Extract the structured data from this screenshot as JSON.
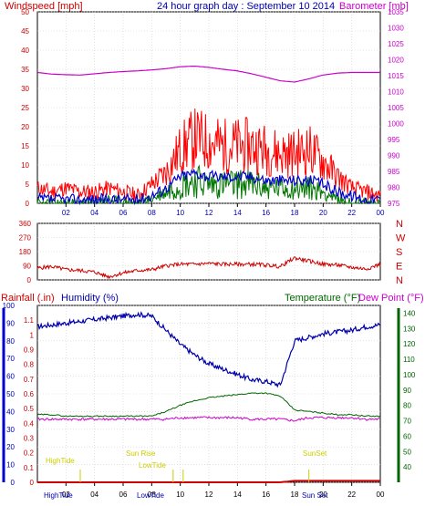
{
  "colors": {
    "wind": "#ff0000",
    "gust": "#0000cc",
    "wind_green": "#007700",
    "baro": "#cc00cc",
    "dir": "#cc0000",
    "rain": "#cc0000",
    "humidity": "#0000aa",
    "temperature": "#006600",
    "dewpoint": "#cc00cc",
    "annotation": "#cccc00"
  },
  "chart_data": [
    {
      "type": "line",
      "title": "24 hour graph day : September 10 2014",
      "left_label": "Windspeed [mph]",
      "right_label": "Barometer [mb]",
      "x_ticks": [
        "02",
        "04",
        "06",
        "08",
        "10",
        "12",
        "14",
        "16",
        "18",
        "20",
        "22",
        "00"
      ],
      "ylim_left": [
        0,
        50
      ],
      "yticks_left": [
        "0",
        "5",
        "10",
        "15",
        "20",
        "25",
        "30",
        "35",
        "40",
        "45",
        "50"
      ],
      "ylim_right": [
        975,
        1035
      ],
      "yticks_right": [
        "975",
        "980",
        "985",
        "990",
        "995",
        "1000",
        "1005",
        "1010",
        "1015",
        "1020",
        "1025",
        "1030",
        "1035"
      ],
      "hours": [
        0,
        1,
        2,
        3,
        4,
        5,
        6,
        7,
        8,
        9,
        10,
        11,
        12,
        13,
        14,
        15,
        16,
        17,
        18,
        19,
        20,
        21,
        22,
        23,
        24
      ],
      "series": [
        {
          "key": "wind",
          "axis": "left",
          "values": [
            4,
            3,
            4,
            3,
            3,
            4,
            3,
            2,
            5,
            8,
            14,
            17,
            16,
            15,
            15,
            15,
            14,
            13,
            13,
            14,
            11,
            7,
            4,
            3,
            2
          ]
        },
        {
          "key": "gust",
          "axis": "left",
          "values": [
            1,
            1,
            1,
            1,
            1,
            1,
            1,
            1,
            2,
            4,
            7,
            8,
            7,
            7,
            7,
            7,
            6,
            6,
            6,
            6,
            5,
            3,
            2,
            1,
            1
          ]
        },
        {
          "key": "wind_green",
          "axis": "left",
          "values": [
            0,
            0,
            0,
            0,
            0,
            1,
            0,
            0,
            1,
            3,
            5,
            6,
            5,
            5,
            5,
            5,
            4,
            4,
            4,
            4,
            3,
            1,
            0,
            0,
            0
          ]
        },
        {
          "key": "baro",
          "axis": "right",
          "values": [
            1016,
            1015.5,
            1015.3,
            1015.2,
            1015.6,
            1016,
            1016.3,
            1016.5,
            1016.8,
            1017.2,
            1017.8,
            1018,
            1017.6,
            1017,
            1016.5,
            1015.6,
            1014.5,
            1013.4,
            1013,
            1014,
            1015.2,
            1015.8,
            1016,
            1016,
            1016
          ]
        }
      ]
    },
    {
      "type": "line",
      "ylim": [
        0,
        360
      ],
      "yticks": [
        "0",
        "90",
        "180",
        "270",
        "360"
      ],
      "dir_labels": [
        "N",
        "W",
        "S",
        "E",
        "N"
      ],
      "hours": [
        0,
        1,
        2,
        3,
        4,
        5,
        6,
        7,
        8,
        9,
        10,
        11,
        12,
        13,
        14,
        15,
        16,
        17,
        18,
        19,
        20,
        21,
        22,
        23,
        24
      ],
      "series": [
        {
          "key": "dir",
          "values": [
            75,
            85,
            65,
            60,
            50,
            20,
            45,
            60,
            65,
            90,
            100,
            100,
            105,
            100,
            100,
            100,
            95,
            85,
            140,
            120,
            100,
            95,
            80,
            70,
            100
          ]
        }
      ]
    },
    {
      "type": "line",
      "label_rain": "Rainfall (.in)",
      "label_humidity": "Humidity (%)",
      "label_temperature": "Temperature (°F)",
      "label_dewpoint": "Dew Point (°F)",
      "x_ticks": [
        "02",
        "04",
        "06",
        "08",
        "10",
        "12",
        "14",
        "16",
        "18",
        "20",
        "22",
        "00"
      ],
      "ylim_humidity": [
        0,
        100
      ],
      "yticks_humidity": [
        "0",
        "10",
        "20",
        "30",
        "40",
        "50",
        "60",
        "70",
        "80",
        "90",
        "100"
      ],
      "ylim_rain": [
        0,
        1.2
      ],
      "yticks_rain": [
        "0",
        "0.1",
        "0.2",
        "0.3",
        "0.4",
        "0.5",
        "0.6",
        "0.7",
        "0.8",
        "0.9",
        "1",
        "1.1"
      ],
      "ylim_temp": [
        30,
        145
      ],
      "yticks_temp": [
        "40",
        "50",
        "60",
        "70",
        "80",
        "90",
        "100",
        "110",
        "120",
        "130",
        "140"
      ],
      "hours": [
        0,
        1,
        2,
        3,
        4,
        5,
        6,
        7,
        8,
        9,
        10,
        11,
        12,
        13,
        14,
        15,
        16,
        17,
        18,
        19,
        20,
        21,
        22,
        23,
        24
      ],
      "series": [
        {
          "key": "humidity",
          "axis": "humidity",
          "values": [
            88,
            89,
            90,
            91,
            92,
            93,
            94,
            95,
            94,
            86,
            78,
            72,
            67,
            64,
            61,
            58,
            57,
            55,
            80,
            82,
            84,
            85,
            86,
            88,
            89
          ]
        },
        {
          "key": "temperature",
          "axis": "temp",
          "values": [
            74,
            74,
            73,
            73,
            73,
            73,
            73,
            73,
            73,
            76,
            80,
            83,
            85,
            86,
            87,
            88,
            88,
            86,
            77,
            76,
            75,
            74,
            74,
            73,
            73
          ]
        },
        {
          "key": "dewpoint",
          "axis": "temp",
          "values": [
            71,
            71,
            71,
            71,
            71,
            71,
            71,
            71,
            71,
            71,
            72,
            72,
            72,
            72,
            72,
            71,
            71,
            71,
            70,
            72,
            72,
            72,
            72,
            71,
            71
          ]
        },
        {
          "key": "rain",
          "axis": "rain",
          "values": [
            0,
            0,
            0,
            0,
            0,
            0,
            0,
            0,
            0,
            0,
            0,
            0,
            0,
            0,
            0,
            0,
            0,
            0,
            0.01,
            0.01,
            0.01,
            0.01,
            0.01,
            0.01,
            0.01
          ]
        }
      ],
      "annotations": {
        "high_tide": "HighTide",
        "sun_rise": "Sun Rise",
        "low_tide": "LowTide",
        "sun_set": "SunSet",
        "bottom_high_tide": "HighTide",
        "bottom_low_tide": "LowTide",
        "bottom_sun_set": "Sun Set"
      }
    }
  ]
}
